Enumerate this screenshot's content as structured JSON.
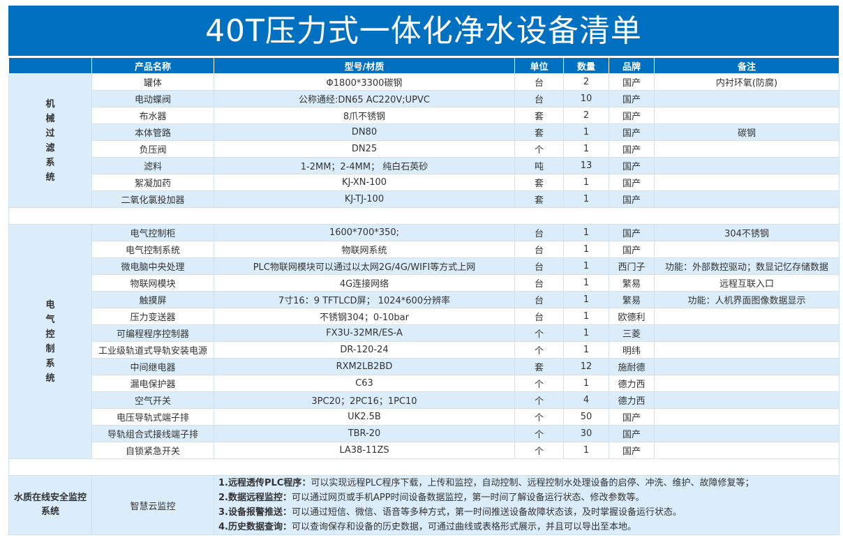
{
  "title": "40T压力式一体化净水设备清单",
  "headers": [
    "",
    "产品名称",
    "型号/材质",
    "单位",
    "数量",
    "品牌",
    "备注"
  ],
  "sections": [
    {
      "category": "机械过滤系统",
      "rows": [
        [
          "罐体",
          "Φ1800*3300碳钢",
          "台",
          "2",
          "国产",
          "内衬环氧(防腐)"
        ],
        [
          "电动蝶阀",
          "公称通经:DN65 AC220V;UPVC",
          "台",
          "10",
          "国产",
          ""
        ],
        [
          "布水器",
          "8爪不锈钢",
          "套",
          "2",
          "国产",
          ""
        ],
        [
          "本体管路",
          "DN80",
          "套",
          "1",
          "国产",
          "碳钢"
        ],
        [
          "负压阀",
          "DN25",
          "个",
          "1",
          "国产",
          ""
        ],
        [
          "滤料",
          "1-2MM；2-4MM； 纯白石英砂",
          "吨",
          "13",
          "国产",
          ""
        ],
        [
          "絮凝加药",
          "KJ-XN-100",
          "套",
          "1",
          "国产",
          ""
        ],
        [
          "二氧化氯投加器",
          "KJ-TJ-100",
          "套",
          "1",
          "国产",
          ""
        ]
      ]
    },
    {
      "category": "电气控制系统",
      "rows": [
        [
          "电气控制柜",
          "1600*700*350;",
          "台",
          "1",
          "国产",
          "304不锈钢"
        ],
        [
          "电气控制系统",
          "物联网系统",
          "台",
          "1",
          "国产",
          ""
        ],
        [
          "微电脑中央处理",
          "PLC物联网模块可以通过以太网2G/4G/WIFI等方式上网",
          "台",
          "1",
          "西门子",
          "功能：外部数控驱动；数显记忆存储数据"
        ],
        [
          "物联网模块",
          "4G连接网络",
          "台",
          "1",
          "繁易",
          "远程互联入口"
        ],
        [
          "触摸屏",
          "7寸16：9 TFTLCD屏； 1024*600分辨率",
          "台",
          "1",
          "繁易",
          "功能：人机界面图像数据显示"
        ],
        [
          "压力变送器",
          "不锈钢304；0-10bar",
          "台",
          "1",
          "欧德利",
          ""
        ],
        [
          "可编程程序控制器",
          "FX3U-32MR/ES-A",
          "个",
          "1",
          "三菱",
          ""
        ],
        [
          "工业级轨道式导轨安装电源",
          "DR-120-24",
          "个",
          "1",
          "明纬",
          ""
        ],
        [
          "中间继电器",
          "RXM2LB2BD",
          "套",
          "12",
          "施耐德",
          ""
        ],
        [
          "漏电保护器",
          "C63",
          "个",
          "1",
          "德力西",
          ""
        ],
        [
          "空气开关",
          "3PC20；2PC16；1PC10",
          "个",
          "4",
          "德力西",
          ""
        ],
        [
          "电压导轨式端子排",
          "UK2.5B",
          "个",
          "50",
          "国产",
          ""
        ],
        [
          "导轨组合式接线端子排",
          "TBR-20",
          "个",
          "30",
          "国产",
          ""
        ],
        [
          "自锁紧急开关",
          "LA38-11ZS",
          "个",
          "1",
          "国产",
          ""
        ]
      ]
    }
  ],
  "monitor": {
    "category": "水质在线安全监控系统",
    "name": "智慧云监控",
    "features": [
      {
        "label": "1.远程透传PLC程序：",
        "text": "可以实现远程PLC程序下载，上传和监控，自动控制、远程控制水处理设备的启停、冲洗、维护、故障修复等；"
      },
      {
        "label": "2.数据远程监控：",
        "text": "可以通过网页或手机APP时间设备数据监控，第一时间了解设备运行状态、修改参数等。"
      },
      {
        "label": "3.设备报警推送：",
        "text": "可以通过短信、微信、语音等多种方式，第一时间推送设备故障状态该，及时掌握设备运行状态。"
      },
      {
        "label": "4.历史数据查询：",
        "text": "可以查询保存和设备的历史数据，可通过曲线或表格形式展示，并且可以导出至本地。"
      }
    ]
  }
}
